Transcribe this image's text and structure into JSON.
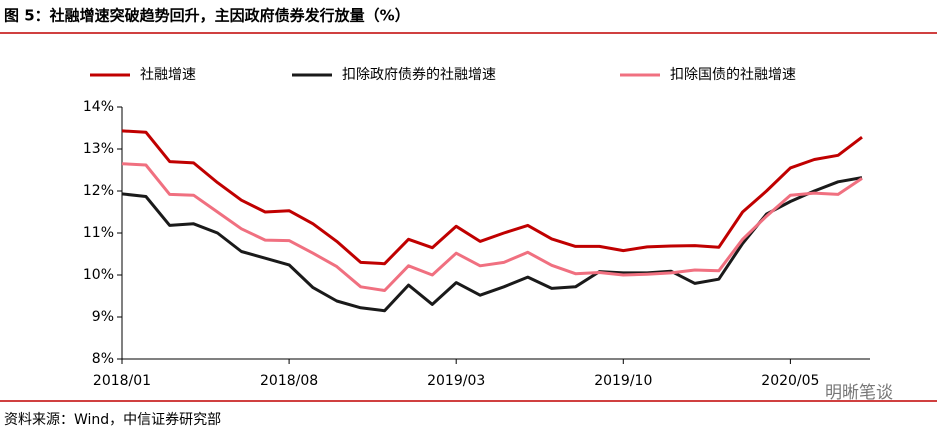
{
  "chart_data": {
    "type": "line",
    "title": "图 5：社融增速突破趋势回升，主因政府债券发行放量（%）",
    "source": "资料来源：Wind，中信证券研究部",
    "watermark": "明晰笔谈",
    "categories": [
      "2018/01",
      null,
      null,
      null,
      null,
      null,
      null,
      "2018/08",
      null,
      null,
      null,
      null,
      null,
      null,
      "2019/03",
      null,
      null,
      null,
      null,
      null,
      null,
      "2019/10",
      null,
      null,
      null,
      null,
      null,
      null,
      "2020/05",
      null,
      null,
      null
    ],
    "series": [
      {
        "name": "社融增速",
        "color": "#c00000",
        "values": [
          13.43,
          13.4,
          12.7,
          12.67,
          12.2,
          11.78,
          11.5,
          11.53,
          11.22,
          10.8,
          10.3,
          10.27,
          10.85,
          10.65,
          11.16,
          10.8,
          11.0,
          11.18,
          10.86,
          10.68,
          10.68,
          10.58,
          10.67,
          10.69,
          10.7,
          10.66,
          11.5,
          12.0,
          12.55,
          12.75,
          12.85,
          13.28
        ]
      },
      {
        "name": "扣除政府债券的社融增速",
        "color": "#1a1a1a",
        "values": [
          11.93,
          11.87,
          11.18,
          11.22,
          11.0,
          10.56,
          10.4,
          10.24,
          9.7,
          9.38,
          9.22,
          9.15,
          9.76,
          9.3,
          9.82,
          9.52,
          9.72,
          9.95,
          9.68,
          9.72,
          10.08,
          10.05,
          10.05,
          10.09,
          9.8,
          9.9,
          10.75,
          11.45,
          11.75,
          12.0,
          12.22,
          12.32
        ]
      },
      {
        "name": "扣除国债的社融增速",
        "color": "#f07080",
        "values": [
          12.65,
          12.62,
          11.92,
          11.9,
          11.5,
          11.1,
          10.83,
          10.82,
          10.52,
          10.2,
          9.72,
          9.63,
          10.22,
          10.0,
          10.52,
          10.22,
          10.3,
          10.54,
          10.23,
          10.03,
          10.06,
          10.0,
          10.02,
          10.05,
          10.12,
          10.1,
          10.85,
          11.4,
          11.9,
          11.95,
          11.92,
          12.3
        ]
      }
    ],
    "ylim": [
      8,
      14
    ],
    "yticks": [
      {
        "value": 8,
        "label": "8%"
      },
      {
        "value": 9,
        "label": "9%"
      },
      {
        "value": 10,
        "label": "10%"
      },
      {
        "value": 11,
        "label": "11%"
      },
      {
        "value": 12,
        "label": "12%"
      },
      {
        "value": 13,
        "label": "13%"
      },
      {
        "value": 14,
        "label": "14%"
      }
    ]
  }
}
